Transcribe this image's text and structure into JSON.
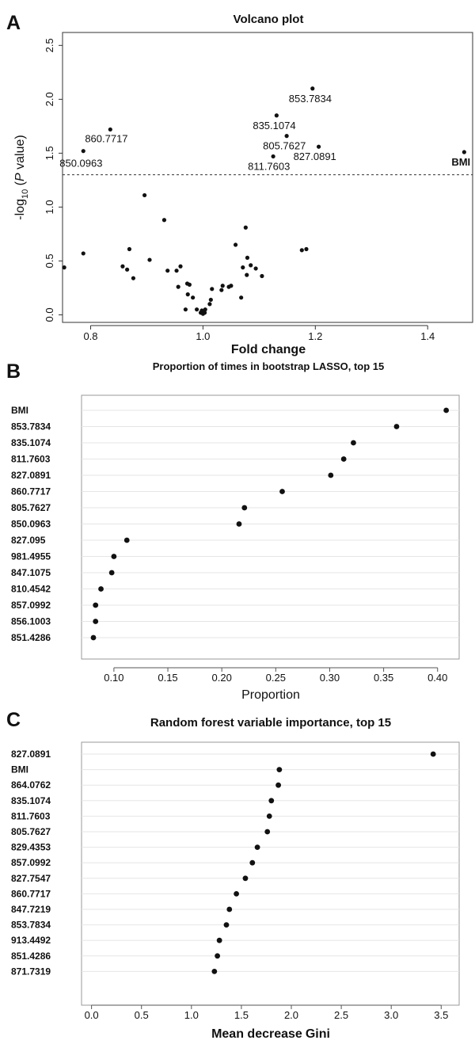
{
  "figure": {
    "panels": [
      "A",
      "B",
      "C"
    ]
  },
  "chart_data": [
    {
      "panel": "A",
      "type": "scatter",
      "title": "Volcano plot",
      "xlabel": "Fold change",
      "ylabel_parts": [
        "-log",
        "10",
        " (",
        "P",
        " value)"
      ],
      "xlim": [
        0.75,
        1.48
      ],
      "ylim": [
        -0.07,
        2.62
      ],
      "xticks": [
        "0.8",
        "1.0",
        "1.2",
        "1.4"
      ],
      "xtick_values": [
        0.8,
        1.0,
        1.2,
        1.4
      ],
      "yticks": [
        "0.0",
        "0.5",
        "1.0",
        "1.5",
        "2.0",
        "2.5"
      ],
      "ytick_values": [
        0.0,
        0.5,
        1.0,
        1.5,
        2.0,
        2.5
      ],
      "threshold": 1.3,
      "labeled_points": [
        {
          "label": "860.7717",
          "x": 0.835,
          "y": 1.72
        },
        {
          "label": "850.0963",
          "x": 0.787,
          "y": 1.52
        },
        {
          "label": "853.7834",
          "x": 1.195,
          "y": 2.1
        },
        {
          "label": "835.1074",
          "x": 1.131,
          "y": 1.85
        },
        {
          "label": "805.7627",
          "x": 1.149,
          "y": 1.66
        },
        {
          "label": "827.0891",
          "x": 1.206,
          "y": 1.56
        },
        {
          "label": "811.7603",
          "x": 1.125,
          "y": 1.47
        },
        {
          "label": "BMI",
          "x": 1.465,
          "y": 1.51
        }
      ],
      "points": [
        {
          "x": 0.753,
          "y": 0.44
        },
        {
          "x": 0.787,
          "y": 0.57
        },
        {
          "x": 0.857,
          "y": 0.45
        },
        {
          "x": 0.865,
          "y": 0.42
        },
        {
          "x": 0.869,
          "y": 0.61
        },
        {
          "x": 0.876,
          "y": 0.34
        },
        {
          "x": 0.896,
          "y": 1.11
        },
        {
          "x": 0.905,
          "y": 0.51
        },
        {
          "x": 0.931,
          "y": 0.88
        },
        {
          "x": 0.937,
          "y": 0.41
        },
        {
          "x": 0.953,
          "y": 0.41
        },
        {
          "x": 0.956,
          "y": 0.26
        },
        {
          "x": 0.96,
          "y": 0.45
        },
        {
          "x": 0.969,
          "y": 0.05
        },
        {
          "x": 0.972,
          "y": 0.29
        },
        {
          "x": 0.973,
          "y": 0.19
        },
        {
          "x": 0.976,
          "y": 0.28
        },
        {
          "x": 0.982,
          "y": 0.16
        },
        {
          "x": 0.989,
          "y": 0.05
        },
        {
          "x": 0.996,
          "y": 0.02
        },
        {
          "x": 0.998,
          "y": 0.04
        },
        {
          "x": 1.0,
          "y": 0.01
        },
        {
          "x": 1.003,
          "y": 0.02
        },
        {
          "x": 1.004,
          "y": 0.05
        },
        {
          "x": 1.012,
          "y": 0.1
        },
        {
          "x": 1.014,
          "y": 0.14
        },
        {
          "x": 1.016,
          "y": 0.24
        },
        {
          "x": 1.033,
          "y": 0.23
        },
        {
          "x": 1.035,
          "y": 0.27
        },
        {
          "x": 1.046,
          "y": 0.26
        },
        {
          "x": 1.05,
          "y": 0.27
        },
        {
          "x": 1.058,
          "y": 0.65
        },
        {
          "x": 1.068,
          "y": 0.16
        },
        {
          "x": 1.071,
          "y": 0.44
        },
        {
          "x": 1.076,
          "y": 0.81
        },
        {
          "x": 1.078,
          "y": 0.37
        },
        {
          "x": 1.079,
          "y": 0.53
        },
        {
          "x": 1.085,
          "y": 0.46
        },
        {
          "x": 1.094,
          "y": 0.43
        },
        {
          "x": 1.105,
          "y": 0.36
        },
        {
          "x": 1.176,
          "y": 0.6
        },
        {
          "x": 1.184,
          "y": 0.61
        }
      ]
    },
    {
      "panel": "B",
      "type": "scatter",
      "title": "Proportion of times in bootstrap LASSO, top 15",
      "xlabel": "Proportion",
      "ylabel": "",
      "xlim": [
        0.07,
        0.42
      ],
      "xticks": [
        "0.10",
        "0.15",
        "0.20",
        "0.25",
        "0.30",
        "0.35",
        "0.40"
      ],
      "xtick_values": [
        0.1,
        0.15,
        0.2,
        0.25,
        0.3,
        0.35,
        0.4
      ],
      "categories": [
        "BMI",
        "853.7834",
        "835.1074",
        "811.7603",
        "827.0891",
        "860.7717",
        "805.7627",
        "850.0963",
        "827.095",
        "981.4955",
        "847.1075",
        "810.4542",
        "857.0992",
        "856.1003",
        "851.4286"
      ],
      "values": [
        0.408,
        0.362,
        0.322,
        0.313,
        0.301,
        0.256,
        0.221,
        0.216,
        0.112,
        0.1,
        0.098,
        0.088,
        0.083,
        0.083,
        0.081
      ]
    },
    {
      "panel": "C",
      "type": "scatter",
      "title": "Random forest variable importance, top 15",
      "xlabel_parts": [
        "Mean decrease",
        "Gini"
      ],
      "ylabel": "",
      "xlim": [
        -0.1,
        3.68
      ],
      "xticks": [
        "0.0",
        "0.5",
        "1.0",
        "1.5",
        "2.0",
        "2.5",
        "3.0",
        "3.5"
      ],
      "xtick_values": [
        0.0,
        0.5,
        1.0,
        1.5,
        2.0,
        2.5,
        3.0,
        3.5
      ],
      "categories": [
        "827.0891",
        "BMI",
        "864.0762",
        "835.1074",
        "811.7603",
        "805.7627",
        "829.4353",
        "857.0992",
        "827.7547",
        "860.7717",
        "847.7219",
        "853.7834",
        "913.4492",
        "851.4286",
        "871.7319"
      ],
      "values": [
        3.42,
        1.88,
        1.87,
        1.8,
        1.78,
        1.76,
        1.66,
        1.61,
        1.54,
        1.45,
        1.38,
        1.35,
        1.28,
        1.26,
        1.23
      ]
    }
  ]
}
